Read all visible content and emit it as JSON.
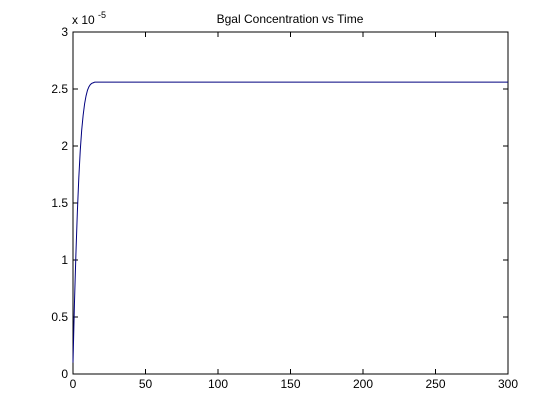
{
  "chart_data": {
    "type": "line",
    "title": "Bgal Concentration vs Time",
    "xlabel": "",
    "ylabel": "",
    "xlim": [
      0,
      300
    ],
    "ylim": [
      0,
      3
    ],
    "y_multiplier_base": "x 10",
    "y_multiplier_exponent": "-5",
    "x_ticks": [
      "0",
      "50",
      "100",
      "150",
      "200",
      "250",
      "300"
    ],
    "y_ticks": [
      "0",
      "0.5",
      "1",
      "1.5",
      "2",
      "2.5",
      "3"
    ],
    "grid": false,
    "series": [
      {
        "color": "#00007f",
        "x": [
          0,
          1,
          2,
          3,
          4,
          5,
          6,
          7,
          8,
          9,
          10,
          11,
          12,
          13,
          14,
          15,
          16,
          18,
          20,
          25,
          30,
          50,
          100,
          150,
          200,
          250,
          300
        ],
        "y": [
          0.1,
          0.62,
          1.05,
          1.42,
          1.72,
          1.96,
          2.14,
          2.27,
          2.37,
          2.44,
          2.49,
          2.52,
          2.54,
          2.55,
          2.555,
          2.56,
          2.56,
          2.56,
          2.56,
          2.56,
          2.56,
          2.56,
          2.56,
          2.56,
          2.56,
          2.56,
          2.56
        ]
      }
    ]
  }
}
